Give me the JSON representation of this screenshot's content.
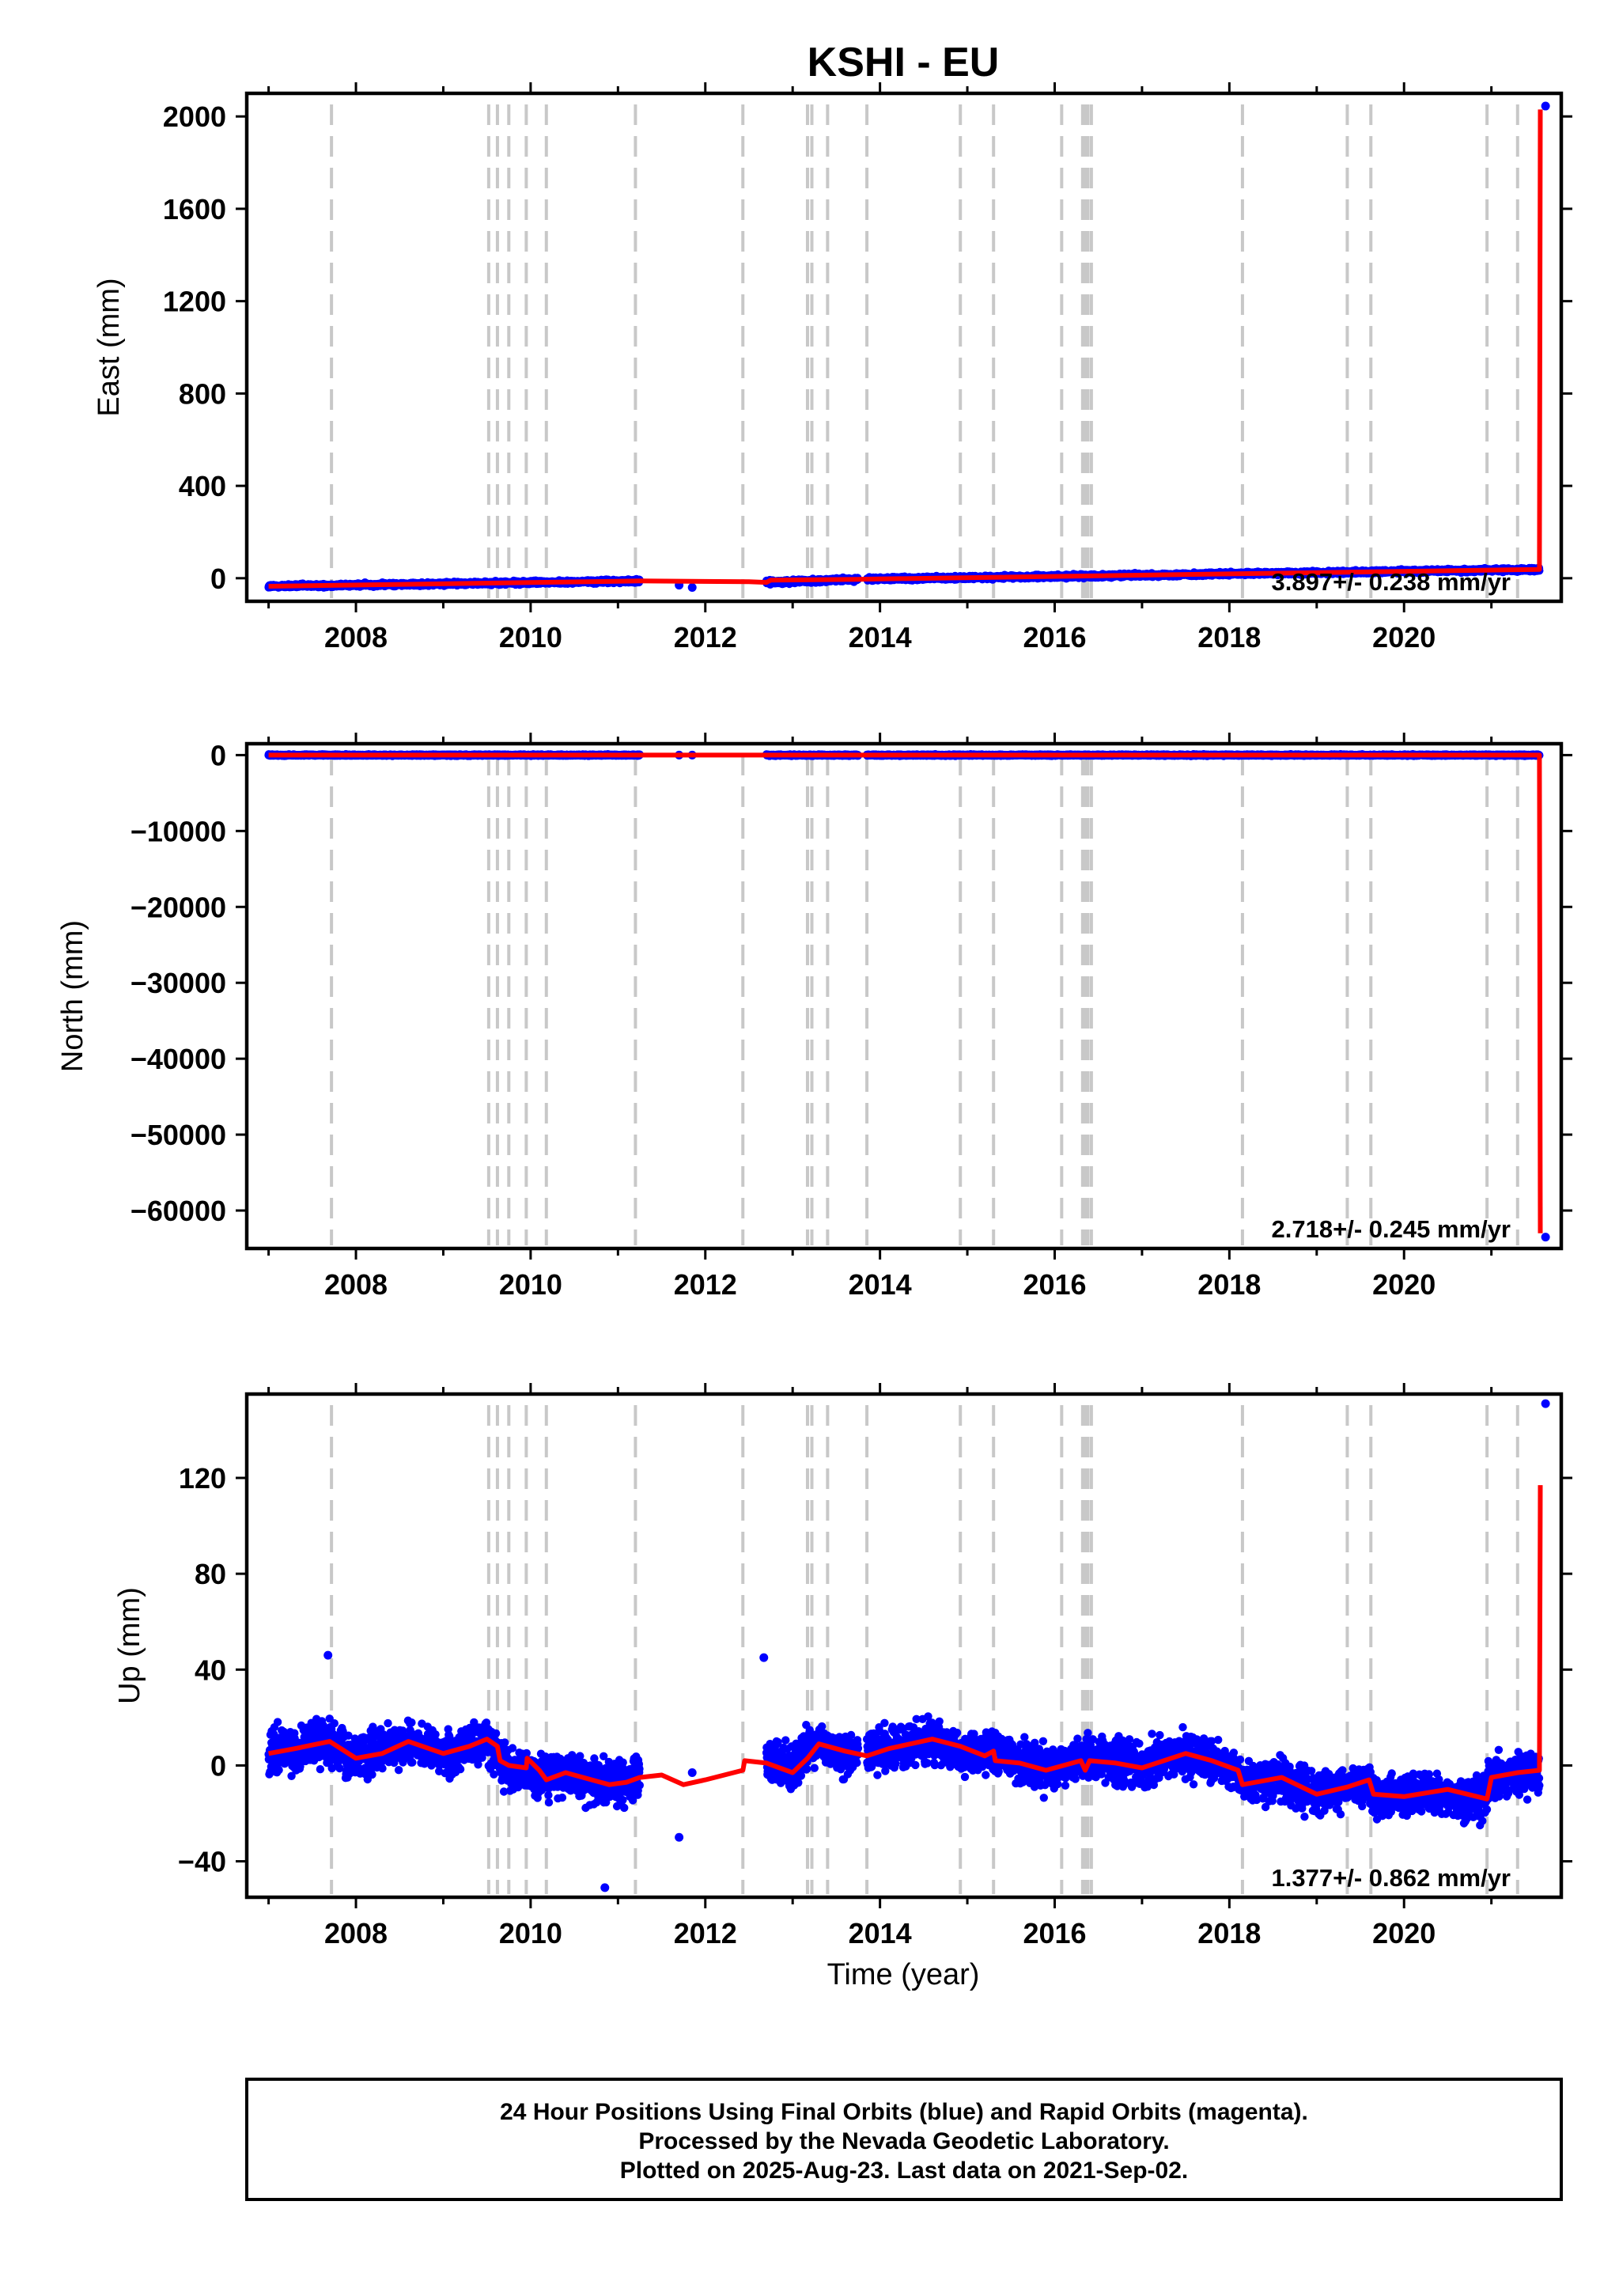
{
  "title": "KSHI - EU",
  "xlabel": "Time (year)",
  "footer": {
    "lines": [
      "24 Hour Positions Using Final Orbits (blue) and Rapid Orbits (magenta).",
      "Processed by the Nevada Geodetic Laboratory.",
      "Plotted on 2025-Aug-23. Last data on 2021-Sep-02."
    ]
  },
  "colors": {
    "final_orbit_points": "#0000ff",
    "model_line": "#ff0000",
    "steps": "#c8c8c8",
    "frame": "#000000"
  },
  "chart_data": [
    {
      "type": "scatter",
      "panel": "east",
      "ylabel": "East (mm)",
      "xlim": [
        2006.75,
        2021.8
      ],
      "ylim": [
        -100,
        2100
      ],
      "xticks": [
        2008,
        2010,
        2012,
        2014,
        2016,
        2018,
        2020
      ],
      "yticks": [
        0,
        400,
        800,
        1200,
        1600,
        2000
      ],
      "ytick_labels": [
        "0",
        "400",
        "800",
        "1200",
        "1600",
        "2000"
      ],
      "rate_label": "3.897+/- 0.238 mm/yr",
      "steps": [
        2007.72,
        2009.52,
        2009.62,
        2009.75,
        2009.95,
        2010.18,
        2011.2,
        2012.43,
        2013.17,
        2013.22,
        2013.4,
        2013.85,
        2014.92,
        2015.3,
        2016.08,
        2016.32,
        2016.35,
        2016.38,
        2016.42,
        2018.15,
        2019.35,
        2019.62,
        2020.95,
        2021.3
      ],
      "series": [
        {
          "kind": "points",
          "segments": [
            [
              2007.0,
              2011.25
            ],
            [
              2012.7,
              2013.75
            ],
            [
              2013.85,
              2021.55
            ]
          ],
          "isolated": [
            {
              "x": 2011.7,
              "y": -30
            },
            {
              "x": 2011.85,
              "y": -40
            },
            {
              "x": 2021.62,
              "y": 2045
            }
          ],
          "trend": [
            [
              2007.0,
              -35
            ],
            [
              2011.25,
              -12
            ],
            [
              2012.7,
              -18
            ],
            [
              2013.75,
              -5
            ],
            [
              2013.85,
              -4
            ],
            [
              2021.55,
              38
            ]
          ],
          "scatter": 5
        },
        {
          "kind": "model",
          "points": [
            [
              2007.0,
              -35
            ],
            [
              2011.25,
              -12
            ],
            [
              2012.5,
              -15
            ],
            [
              2012.7,
              -18
            ],
            [
              2012.75,
              -8
            ],
            [
              2013.75,
              -5
            ],
            [
              2013.85,
              -4
            ],
            [
              2021.55,
              38
            ],
            [
              2021.56,
              2030
            ]
          ]
        }
      ]
    },
    {
      "type": "scatter",
      "panel": "north",
      "ylabel": "North (mm)",
      "xlim": [
        2006.75,
        2021.8
      ],
      "ylim": [
        -65000,
        1500
      ],
      "xticks": [
        2008,
        2010,
        2012,
        2014,
        2016,
        2018,
        2020
      ],
      "yticks": [
        0,
        -10000,
        -20000,
        -30000,
        -40000,
        -50000,
        -60000
      ],
      "ytick_labels": [
        "0",
        "−10000",
        "−20000",
        "−30000",
        "−40000",
        "−50000",
        "−60000"
      ],
      "rate_label": "2.718+/- 0.245 mm/yr",
      "steps": [
        2007.72,
        2009.52,
        2009.62,
        2009.75,
        2009.95,
        2010.18,
        2011.2,
        2012.43,
        2013.17,
        2013.22,
        2013.4,
        2013.85,
        2014.92,
        2015.3,
        2016.08,
        2016.32,
        2016.35,
        2016.38,
        2016.42,
        2018.15,
        2019.35,
        2019.62,
        2020.95,
        2021.3
      ],
      "series": [
        {
          "kind": "points",
          "segments": [
            [
              2007.0,
              2011.25
            ],
            [
              2012.7,
              2013.75
            ],
            [
              2013.85,
              2021.55
            ]
          ],
          "isolated": [
            {
              "x": 2011.7,
              "y": 0
            },
            {
              "x": 2011.85,
              "y": 0
            },
            {
              "x": 2021.62,
              "y": -63500
            }
          ],
          "trend": [
            [
              2007.0,
              0
            ],
            [
              2021.55,
              0
            ]
          ],
          "scatter": 60
        },
        {
          "kind": "model",
          "points": [
            [
              2007.0,
              0
            ],
            [
              2021.55,
              0
            ],
            [
              2021.56,
              -63000
            ]
          ]
        }
      ]
    },
    {
      "type": "scatter",
      "panel": "up",
      "ylabel": "Up (mm)",
      "xlim": [
        2006.75,
        2021.8
      ],
      "ylim": [
        -55,
        155
      ],
      "xticks": [
        2008,
        2010,
        2012,
        2014,
        2016,
        2018,
        2020
      ],
      "yticks": [
        -40,
        0,
        40,
        80,
        120
      ],
      "ytick_labels": [
        "−40",
        "0",
        "40",
        "80",
        "120"
      ],
      "rate_label": "1.377+/- 0.862 mm/yr",
      "steps": [
        2007.72,
        2009.52,
        2009.62,
        2009.75,
        2009.95,
        2010.18,
        2011.2,
        2012.43,
        2013.17,
        2013.22,
        2013.4,
        2013.85,
        2014.92,
        2015.3,
        2016.08,
        2016.32,
        2016.35,
        2016.38,
        2016.42,
        2018.15,
        2019.35,
        2019.62,
        2020.95,
        2021.3
      ],
      "series": [
        {
          "kind": "points",
          "segments": [
            [
              2007.0,
              2011.25
            ],
            [
              2012.7,
              2013.75
            ],
            [
              2013.85,
              2021.55
            ]
          ],
          "isolated": [
            {
              "x": 2011.7,
              "y": -30
            },
            {
              "x": 2011.85,
              "y": -3
            },
            {
              "x": 2012.67,
              "y": 45
            },
            {
              "x": 2007.68,
              "y": 46
            },
            {
              "x": 2010.85,
              "y": -51
            },
            {
              "x": 2021.62,
              "y": 151
            }
          ],
          "trend": [
            [
              2007.0,
              5
            ],
            [
              2007.7,
              10
            ],
            [
              2008.0,
              3
            ],
            [
              2008.6,
              10
            ],
            [
              2009.0,
              5
            ],
            [
              2009.5,
              11
            ],
            [
              2009.75,
              -2
            ],
            [
              2010.18,
              -4
            ],
            [
              2010.5,
              -5
            ],
            [
              2010.9,
              -8
            ],
            [
              2011.25,
              -5
            ],
            [
              2012.7,
              2
            ],
            [
              2013.0,
              -2
            ],
            [
              2013.2,
              8
            ],
            [
              2013.7,
              5
            ],
            [
              2014.0,
              6
            ],
            [
              2014.6,
              10
            ],
            [
              2015.0,
              5
            ],
            [
              2015.3,
              6
            ],
            [
              2015.6,
              1
            ],
            [
              2016.0,
              -1
            ],
            [
              2016.4,
              3
            ],
            [
              2017.0,
              0
            ],
            [
              2017.5,
              5
            ],
            [
              2018.1,
              -3
            ],
            [
              2018.15,
              -7
            ],
            [
              2018.6,
              -6
            ],
            [
              2019.0,
              -12
            ],
            [
              2019.6,
              -8
            ],
            [
              2019.65,
              -14
            ],
            [
              2020.2,
              -11
            ],
            [
              2020.9,
              -14
            ],
            [
              2021.0,
              -5
            ],
            [
              2021.55,
              -3
            ]
          ],
          "scatter": 6
        },
        {
          "kind": "model",
          "points": [
            [
              2007.0,
              5
            ],
            [
              2007.3,
              7
            ],
            [
              2007.7,
              10
            ],
            [
              2008.0,
              3
            ],
            [
              2008.3,
              5
            ],
            [
              2008.6,
              10
            ],
            [
              2009.0,
              5
            ],
            [
              2009.3,
              8
            ],
            [
              2009.5,
              11
            ],
            [
              2009.62,
              8
            ],
            [
              2009.65,
              2
            ],
            [
              2009.75,
              0
            ],
            [
              2009.95,
              -1
            ],
            [
              2009.96,
              3
            ],
            [
              2010.1,
              -2
            ],
            [
              2010.18,
              -6
            ],
            [
              2010.4,
              -3
            ],
            [
              2010.7,
              -6
            ],
            [
              2010.9,
              -8
            ],
            [
              2011.1,
              -7
            ],
            [
              2011.25,
              -5
            ],
            [
              2011.5,
              -4
            ],
            [
              2011.75,
              -8
            ],
            [
              2012.0,
              -6
            ],
            [
              2012.43,
              -2
            ],
            [
              2012.45,
              2
            ],
            [
              2012.7,
              1
            ],
            [
              2013.0,
              -3
            ],
            [
              2013.17,
              3
            ],
            [
              2013.3,
              9
            ],
            [
              2013.6,
              6
            ],
            [
              2013.85,
              4
            ],
            [
              2014.1,
              7
            ],
            [
              2014.6,
              11
            ],
            [
              2014.92,
              8
            ],
            [
              2015.2,
              4
            ],
            [
              2015.3,
              6
            ],
            [
              2015.32,
              2
            ],
            [
              2015.6,
              1
            ],
            [
              2015.9,
              -2
            ],
            [
              2016.3,
              2
            ],
            [
              2016.35,
              -2
            ],
            [
              2016.4,
              2
            ],
            [
              2016.7,
              1
            ],
            [
              2017.0,
              -1
            ],
            [
              2017.5,
              5
            ],
            [
              2017.8,
              2
            ],
            [
              2018.1,
              -2
            ],
            [
              2018.15,
              -8
            ],
            [
              2018.6,
              -5
            ],
            [
              2019.0,
              -12
            ],
            [
              2019.35,
              -9
            ],
            [
              2019.6,
              -6
            ],
            [
              2019.65,
              -12
            ],
            [
              2020.0,
              -13
            ],
            [
              2020.5,
              -10
            ],
            [
              2020.95,
              -14
            ],
            [
              2021.0,
              -5
            ],
            [
              2021.3,
              -3
            ],
            [
              2021.55,
              -2
            ],
            [
              2021.56,
              117
            ]
          ]
        }
      ]
    }
  ]
}
